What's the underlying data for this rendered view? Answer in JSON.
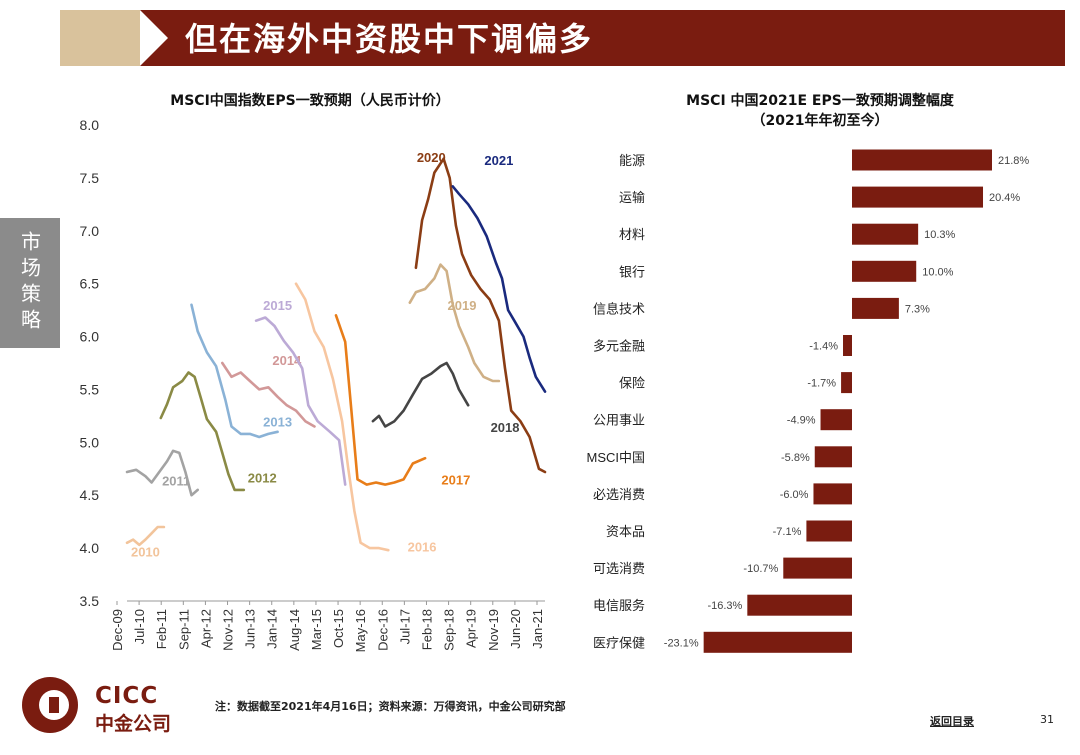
{
  "header": {
    "title": "但在海外中资股中下调偏多",
    "side_tab": "市场策略"
  },
  "left_chart_title": "MSCI中国指数EPS一致预期（人民币计价）",
  "right_chart_title_line1": "MSCI 中国2021E EPS一致预期调整幅度",
  "right_chart_title_line2": "（2021年年初至今）",
  "footer": {
    "note": "注：数据截至2021年4月16日；资料来源：万得资讯，中金公司研究部",
    "link": "返回目录",
    "page": "31",
    "logo_word": "CICC",
    "logo_cn": "中金公司"
  },
  "colors": {
    "accent": "#7a1c10",
    "deco": "#d9c29c",
    "bar": "#7a1c10"
  },
  "chart_data": [
    {
      "type": "line",
      "ylim": [
        3.5,
        8.0
      ],
      "yticks": [
        "8.0",
        "7.5",
        "7.0",
        "6.5",
        "6.0",
        "5.5",
        "5.0",
        "4.5",
        "4.0",
        "3.5"
      ],
      "xlim": [
        "2009-12",
        "2021-04"
      ],
      "xticks": [
        "Dec-09",
        "Jul-10",
        "Feb-11",
        "Sep-11",
        "Apr-12",
        "Nov-12",
        "Jun-13",
        "Jan-14",
        "Aug-14",
        "Mar-15",
        "Oct-15",
        "May-16",
        "Dec-16",
        "Jul-17",
        "Feb-18",
        "Sep-18",
        "Apr-19",
        "Nov-19",
        "Jun-20",
        "Jan-21"
      ],
      "series": [
        {
          "name": "2010",
          "color": "#f2c49b",
          "label_at": [
            "2010-06",
            3.92
          ],
          "points": [
            [
              "2009-12",
              4.05
            ],
            [
              "2010-02",
              4.08
            ],
            [
              "2010-04",
              4.03
            ],
            [
              "2010-06",
              4.08
            ],
            [
              "2010-08",
              4.14
            ],
            [
              "2010-10",
              4.2
            ],
            [
              "2010-12",
              4.2
            ]
          ]
        },
        {
          "name": "2011",
          "color": "#a3a3a3",
          "label_at": [
            "2011-04",
            4.59
          ],
          "points": [
            [
              "2009-12",
              4.72
            ],
            [
              "2010-03",
              4.74
            ],
            [
              "2010-06",
              4.68
            ],
            [
              "2010-08",
              4.62
            ],
            [
              "2010-10",
              4.7
            ],
            [
              "2011-01",
              4.82
            ],
            [
              "2011-03",
              4.92
            ],
            [
              "2011-05",
              4.9
            ],
            [
              "2011-07",
              4.72
            ],
            [
              "2011-09",
              4.5
            ],
            [
              "2011-11",
              4.55
            ]
          ]
        },
        {
          "name": "2012",
          "color": "#8a8a45",
          "label_at": [
            "2013-08",
            4.62
          ],
          "points": [
            [
              "2010-11",
              5.23
            ],
            [
              "2011-01",
              5.36
            ],
            [
              "2011-03",
              5.52
            ],
            [
              "2011-06",
              5.58
            ],
            [
              "2011-08",
              5.66
            ],
            [
              "2011-10",
              5.62
            ],
            [
              "2011-12",
              5.42
            ],
            [
              "2012-02",
              5.22
            ],
            [
              "2012-05",
              5.1
            ],
            [
              "2012-07",
              4.9
            ],
            [
              "2012-09",
              4.7
            ],
            [
              "2012-11",
              4.55
            ],
            [
              "2013-02",
              4.55
            ]
          ]
        },
        {
          "name": "2013",
          "color": "#8ab2d6",
          "label_at": [
            "2014-01",
            5.15
          ],
          "points": [
            [
              "2011-09",
              6.3
            ],
            [
              "2011-11",
              6.05
            ],
            [
              "2012-02",
              5.85
            ],
            [
              "2012-05",
              5.72
            ],
            [
              "2012-08",
              5.4
            ],
            [
              "2012-10",
              5.15
            ],
            [
              "2013-01",
              5.08
            ],
            [
              "2013-04",
              5.08
            ],
            [
              "2013-07",
              5.05
            ],
            [
              "2013-10",
              5.08
            ],
            [
              "2014-01",
              5.1
            ]
          ]
        },
        {
          "name": "2014",
          "color": "#d29898",
          "label_at": [
            "2014-04",
            5.73
          ],
          "points": [
            [
              "2012-07",
              5.75
            ],
            [
              "2012-10",
              5.62
            ],
            [
              "2013-01",
              5.66
            ],
            [
              "2013-04",
              5.58
            ],
            [
              "2013-07",
              5.5
            ],
            [
              "2013-10",
              5.52
            ],
            [
              "2014-01",
              5.43
            ],
            [
              "2014-04",
              5.35
            ],
            [
              "2014-07",
              5.3
            ],
            [
              "2014-10",
              5.2
            ],
            [
              "2015-01",
              5.15
            ]
          ]
        },
        {
          "name": "2015",
          "color": "#bcaad6",
          "label_at": [
            "2014-01",
            6.25
          ],
          "points": [
            [
              "2013-06",
              6.15
            ],
            [
              "2013-09",
              6.18
            ],
            [
              "2013-12",
              6.1
            ],
            [
              "2014-03",
              5.96
            ],
            [
              "2014-06",
              5.85
            ],
            [
              "2014-09",
              5.7
            ],
            [
              "2014-11",
              5.35
            ],
            [
              "2015-02",
              5.2
            ],
            [
              "2015-06",
              5.1
            ],
            [
              "2015-09",
              5.02
            ],
            [
              "2015-11",
              4.6
            ]
          ]
        },
        {
          "name": "2016",
          "color": "#f7c6a0",
          "label_at": [
            "2017-12",
            3.97
          ],
          "points": [
            [
              "2014-07",
              6.5
            ],
            [
              "2014-10",
              6.35
            ],
            [
              "2015-01",
              6.05
            ],
            [
              "2015-04",
              5.9
            ],
            [
              "2015-07",
              5.6
            ],
            [
              "2015-10",
              5.2
            ],
            [
              "2015-12",
              4.75
            ],
            [
              "2016-02",
              4.35
            ],
            [
              "2016-04",
              4.05
            ],
            [
              "2016-07",
              4.0
            ],
            [
              "2016-10",
              4.0
            ],
            [
              "2017-01",
              3.98
            ]
          ]
        },
        {
          "name": "2017",
          "color": "#e87d19",
          "label_at": [
            "2018-11",
            4.6
          ],
          "points": [
            [
              "2015-08",
              6.2
            ],
            [
              "2015-11",
              5.95
            ],
            [
              "2016-01",
              5.3
            ],
            [
              "2016-03",
              4.65
            ],
            [
              "2016-06",
              4.6
            ],
            [
              "2016-09",
              4.62
            ],
            [
              "2016-12",
              4.6
            ],
            [
              "2017-03",
              4.62
            ],
            [
              "2017-06",
              4.65
            ],
            [
              "2017-09",
              4.8
            ],
            [
              "2018-01",
              4.85
            ]
          ]
        },
        {
          "name": "2018",
          "color": "#454545",
          "label_at": [
            "2020-03",
            5.1
          ],
          "points": [
            [
              "2016-08",
              5.2
            ],
            [
              "2016-10",
              5.25
            ],
            [
              "2016-12",
              5.15
            ],
            [
              "2017-03",
              5.2
            ],
            [
              "2017-06",
              5.3
            ],
            [
              "2017-09",
              5.45
            ],
            [
              "2017-12",
              5.6
            ],
            [
              "2018-03",
              5.65
            ],
            [
              "2018-06",
              5.72
            ],
            [
              "2018-08",
              5.75
            ],
            [
              "2018-10",
              5.65
            ],
            [
              "2018-12",
              5.5
            ],
            [
              "2019-03",
              5.35
            ]
          ]
        },
        {
          "name": "2019",
          "color": "#cfb086",
          "label_at": [
            "2019-01",
            6.25
          ],
          "points": [
            [
              "2017-08",
              6.32
            ],
            [
              "2017-10",
              6.42
            ],
            [
              "2018-01",
              6.45
            ],
            [
              "2018-04",
              6.55
            ],
            [
              "2018-06",
              6.68
            ],
            [
              "2018-08",
              6.62
            ],
            [
              "2018-10",
              6.3
            ],
            [
              "2018-12",
              6.1
            ],
            [
              "2019-03",
              5.9
            ],
            [
              "2019-05",
              5.75
            ],
            [
              "2019-08",
              5.62
            ],
            [
              "2019-11",
              5.58
            ],
            [
              "2020-01",
              5.58
            ]
          ]
        },
        {
          "name": "2020",
          "color": "#8b3d14",
          "label_at": [
            "2018-03",
            7.65
          ],
          "points": [
            [
              "2017-10",
              6.65
            ],
            [
              "2017-12",
              7.1
            ],
            [
              "2018-02",
              7.3
            ],
            [
              "2018-04",
              7.55
            ],
            [
              "2018-07",
              7.68
            ],
            [
              "2018-09",
              7.5
            ],
            [
              "2018-11",
              7.05
            ],
            [
              "2019-01",
              6.78
            ],
            [
              "2019-04",
              6.58
            ],
            [
              "2019-07",
              6.45
            ],
            [
              "2019-10",
              6.35
            ],
            [
              "2020-01",
              6.15
            ],
            [
              "2020-03",
              5.7
            ],
            [
              "2020-05",
              5.3
            ],
            [
              "2020-08",
              5.2
            ],
            [
              "2020-11",
              5.05
            ],
            [
              "2021-02",
              4.75
            ],
            [
              "2021-04",
              4.72
            ]
          ]
        },
        {
          "name": "2021",
          "color": "#1a2a7e",
          "label_at": [
            "2020-01",
            7.62
          ],
          "points": [
            [
              "2018-10",
              7.42
            ],
            [
              "2018-12",
              7.35
            ],
            [
              "2019-03",
              7.25
            ],
            [
              "2019-06",
              7.12
            ],
            [
              "2019-09",
              6.95
            ],
            [
              "2019-12",
              6.7
            ],
            [
              "2020-02",
              6.55
            ],
            [
              "2020-04",
              6.25
            ],
            [
              "2020-06",
              6.15
            ],
            [
              "2020-09",
              6.0
            ],
            [
              "2020-11",
              5.8
            ],
            [
              "2021-01",
              5.62
            ],
            [
              "2021-04",
              5.48
            ]
          ]
        }
      ]
    },
    {
      "type": "bar",
      "orientation": "horizontal",
      "categories": [
        "能源",
        "运输",
        "材料",
        "银行",
        "信息技术",
        "多元金融",
        "保险",
        "公用事业",
        "MSCI中国",
        "必选消费",
        "资本品",
        "可选消费",
        "电信服务",
        "医疗保健"
      ],
      "values": [
        21.8,
        20.4,
        10.3,
        10.0,
        7.3,
        -1.4,
        -1.7,
        -4.9,
        -5.8,
        -6.0,
        -7.1,
        -10.7,
        -16.3,
        -23.1
      ],
      "value_labels": [
        "21.8%",
        "20.4%",
        "10.3%",
        "10.0%",
        "7.3%",
        "-1.4%",
        "-1.7%",
        "-4.9%",
        "-5.8%",
        "-6.0%",
        "-7.1%",
        "-10.7%",
        "-16.3%",
        "-23.1%"
      ],
      "xlim": [
        -25,
        25
      ]
    }
  ]
}
